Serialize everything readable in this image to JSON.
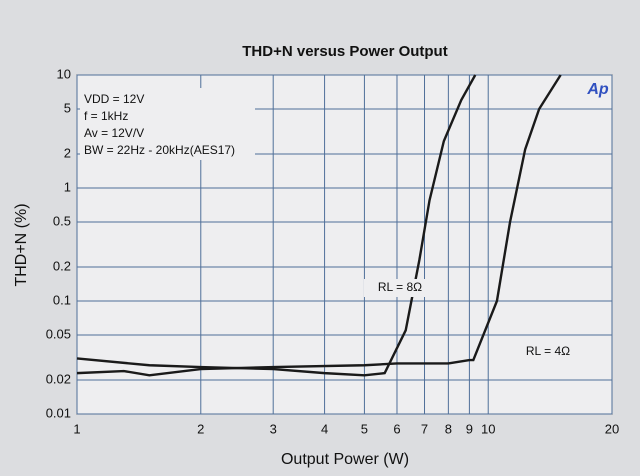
{
  "chart_data": {
    "type": "line",
    "title": "THD+N versus Power Output",
    "x_label": "Output Power (W)",
    "y_label": "THD+N (%)",
    "logo": "Ap",
    "annotations": [
      "VDD = 12V",
      "f = 1kHz",
      "Av = 12V/V",
      "BW = 22Hz - 20kHz(AES17)"
    ],
    "xlog": true,
    "ylog": true,
    "grid": true,
    "xlim": [
      1,
      20
    ],
    "ylim": [
      0.01,
      10
    ],
    "xticks": [
      1,
      2,
      3,
      4,
      5,
      6,
      7,
      8,
      9,
      10,
      20
    ],
    "yticks": [
      0.01,
      0.02,
      0.05,
      0.1,
      0.2,
      0.5,
      1,
      2,
      5,
      10
    ],
    "series": [
      {
        "name": "RL = 8Ω",
        "color": "#1a1a1a",
        "x": [
          1,
          1.5,
          2,
          3,
          4,
          5,
          5.6,
          6.3,
          6.8,
          7.2,
          7.8,
          8.6,
          9.3
        ],
        "values": [
          0.031,
          0.027,
          0.026,
          0.025,
          0.023,
          0.022,
          0.023,
          0.055,
          0.23,
          0.78,
          2.6,
          6,
          10
        ]
      },
      {
        "name": "RL = 4Ω",
        "color": "#1a1a1a",
        "x": [
          1,
          1.3,
          1.5,
          2,
          3,
          5,
          6,
          8,
          9,
          9.2,
          10.5,
          11.3,
          12.3,
          13.3,
          15
        ],
        "values": [
          0.023,
          0.024,
          0.022,
          0.025,
          0.026,
          0.027,
          0.028,
          0.028,
          0.03,
          0.03,
          0.1,
          0.5,
          2.2,
          5,
          10
        ]
      }
    ]
  }
}
